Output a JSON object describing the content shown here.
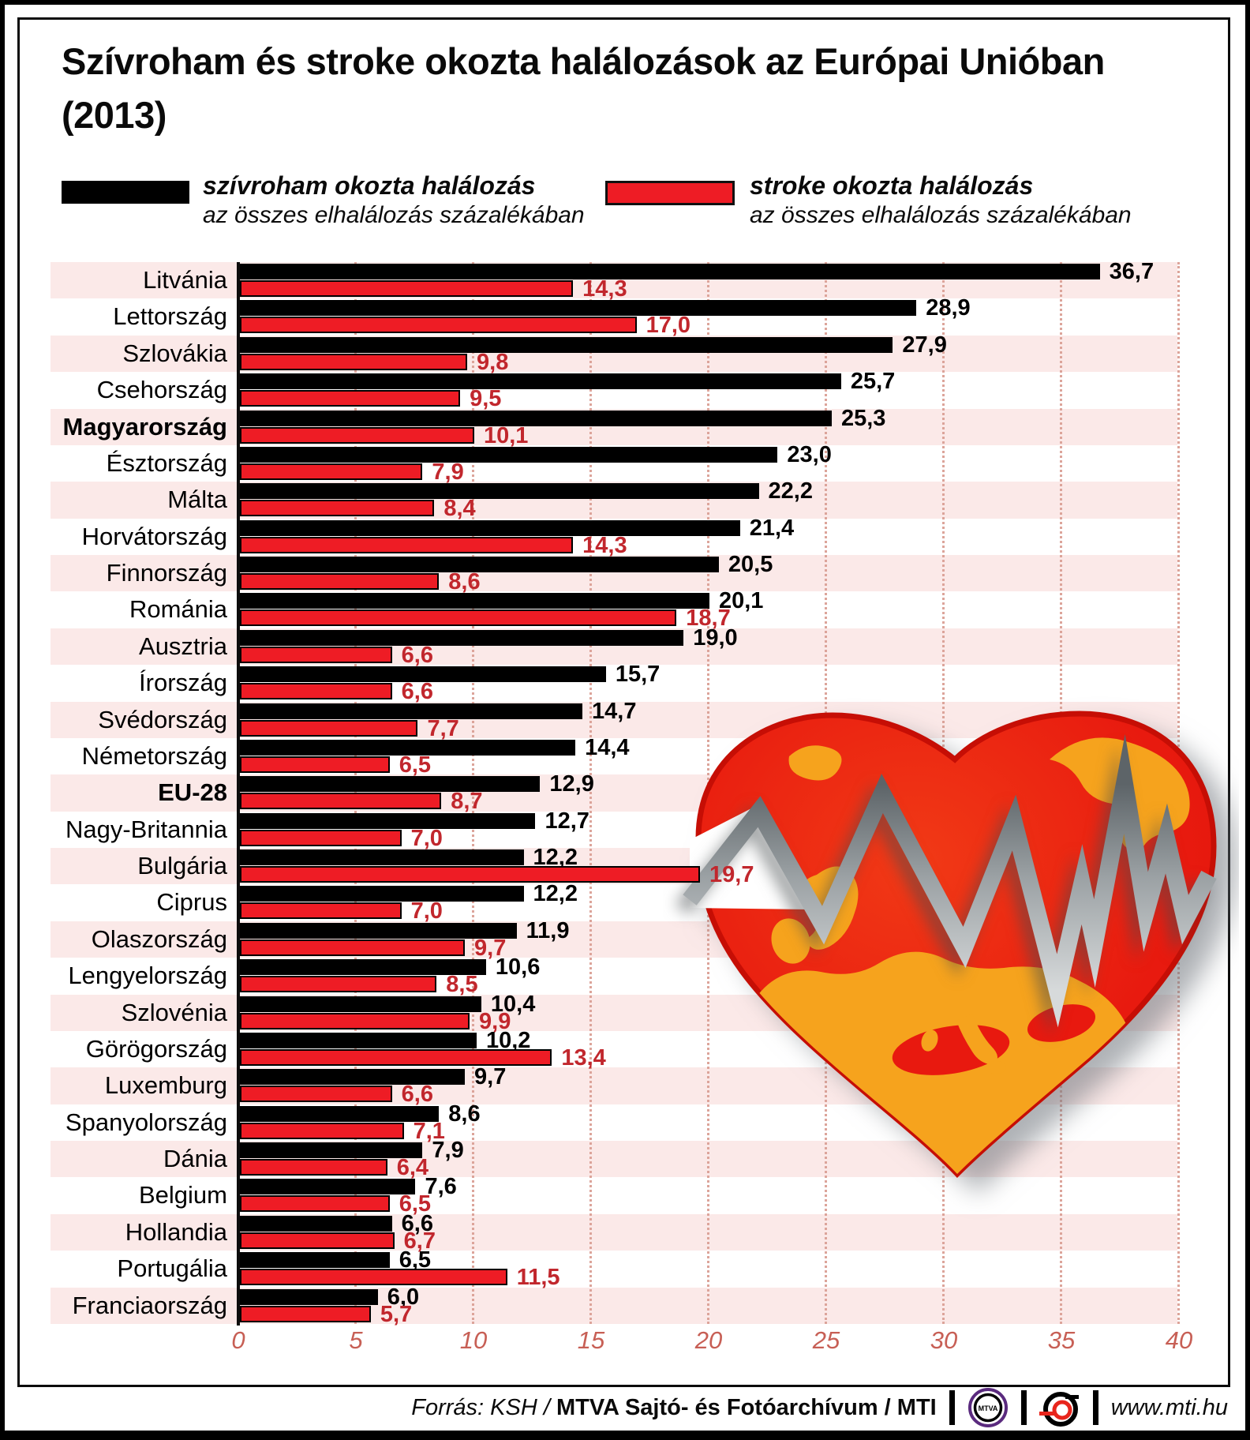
{
  "title": "Szívroham és stroke okozta halálozások az Európai Unióban (2013)",
  "legend": {
    "items": [
      {
        "label": "szívroham okozta halálozás",
        "sublabel": "az összes elhalálozás százalékában",
        "color": "#000000"
      },
      {
        "label": "stroke okozta halálozás",
        "sublabel": "az összes elhalálozás százalékában",
        "color": "#ee1c25"
      }
    ]
  },
  "colors": {
    "bar_black": "#000000",
    "bar_red": "#ee1c25",
    "value_red": "#c1272d",
    "band_pink": "#fbe9e8",
    "tick_text": "#c75f55",
    "gridline": "#dca49a",
    "heart_red": "#e8190f",
    "heart_orange": "#f6a31d",
    "ecg_gray": "#8f969a"
  },
  "chart_data": {
    "type": "bar",
    "orientation": "horizontal",
    "title": "Szívroham és stroke okozta halálozások az Európai Unióban (2013)",
    "xlim": [
      0,
      40
    ],
    "x_ticks": [
      "0",
      "5",
      "10",
      "15",
      "20",
      "25",
      "30",
      "35",
      "40"
    ],
    "grid": "vertical-dotted",
    "legend_position": "top",
    "categories": [
      "Litvánia",
      "Lettország",
      "Szlovákia",
      "Csehország",
      "Magyarország",
      "Észtország",
      "Málta",
      "Horvátország",
      "Finnország",
      "Románia",
      "Ausztria",
      "Írország",
      "Svédország",
      "Németország",
      "EU-28",
      "Nagy-Britannia",
      "Bulgária",
      "Ciprus",
      "Olaszország",
      "Lengyelország",
      "Szlovénia",
      "Görögország",
      "Luxemburg",
      "Spanyolország",
      "Dánia",
      "Belgium",
      "Hollandia",
      "Portugália",
      "Franciaország"
    ],
    "bold_categories": [
      "Magyarország",
      "EU-28"
    ],
    "series": [
      {
        "name": "szívroham okozta halálozás",
        "color": "#000000",
        "values": [
          36.7,
          28.9,
          27.9,
          25.7,
          25.3,
          23.0,
          22.2,
          21.4,
          20.5,
          20.1,
          19.0,
          15.7,
          14.7,
          14.4,
          12.9,
          12.7,
          12.2,
          12.2,
          11.9,
          10.6,
          10.4,
          10.2,
          9.7,
          8.6,
          7.9,
          7.6,
          6.6,
          6.5,
          6.0
        ],
        "labels": [
          "36,7",
          "28,9",
          "27,9",
          "25,7",
          "25,3",
          "23,0",
          "22,2",
          "21,4",
          "20,5",
          "20,1",
          "19,0",
          "15,7",
          "14,7",
          "14,4",
          "12,9",
          "12,7",
          "12,2",
          "12,2",
          "11,9",
          "10,6",
          "10,4",
          "10,2",
          "9,7",
          "8,6",
          "7,9",
          "7,6",
          "6,6",
          "6,5",
          "6,0"
        ]
      },
      {
        "name": "stroke okozta halálozás",
        "color": "#ee1c25",
        "values": [
          14.3,
          17.0,
          9.8,
          9.5,
          10.1,
          7.9,
          8.4,
          14.3,
          8.6,
          18.7,
          6.6,
          6.6,
          7.7,
          6.5,
          8.7,
          7.0,
          19.7,
          7.0,
          9.7,
          8.5,
          9.9,
          13.4,
          6.6,
          7.1,
          6.4,
          6.5,
          6.7,
          11.5,
          5.7
        ],
        "labels": [
          "14,3",
          "17,0",
          "9,8",
          "9,5",
          "10,1",
          "7,9",
          "8,4",
          "14,3",
          "8,6",
          "18,7",
          "6,6",
          "6,6",
          "7,7",
          "6,5",
          "8,7",
          "7,0",
          "19,7",
          "7,0",
          "9,7",
          "8,5",
          "9,9",
          "13,4",
          "6,6",
          "7,1",
          "6,4",
          "6,5",
          "6,7",
          "11,5",
          "5,7"
        ]
      }
    ]
  },
  "footer": {
    "source_prefix": "Forrás: KSH / ",
    "source_bold": "MTVA Sajtó- és Fotóarchívum",
    "source_suffix": " / MTI",
    "mtva_logo_text": "MTVA",
    "website": "www.mti.hu"
  }
}
